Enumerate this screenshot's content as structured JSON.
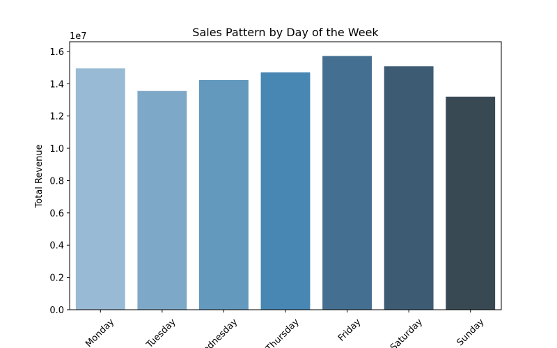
{
  "chart_data": {
    "type": "bar",
    "title": "Sales Pattern by Day of the Week",
    "xlabel": "",
    "ylabel": "Total Revenue",
    "y_scale_label": "1e7",
    "categories": [
      "Monday",
      "Tuesday",
      "Wednesday",
      "Thursday",
      "Friday",
      "Saturday",
      "Sunday"
    ],
    "values": [
      14950000,
      13550000,
      14230000,
      14700000,
      15720000,
      15080000,
      13200000
    ],
    "colors": [
      "#98bad5",
      "#7ea8c8",
      "#6399bd",
      "#4886b3",
      "#446f91",
      "#3d5b73",
      "#394954"
    ],
    "ylim": [
      0,
      16600000
    ],
    "yticks": [
      0,
      2000000,
      4000000,
      6000000,
      8000000,
      10000000,
      12000000,
      14000000,
      16000000
    ],
    "ytick_labels": [
      "0.0",
      "0.2",
      "0.4",
      "0.6",
      "0.8",
      "1.0",
      "1.2",
      "1.4",
      "1.6"
    ],
    "grid": false,
    "legend": "none"
  }
}
